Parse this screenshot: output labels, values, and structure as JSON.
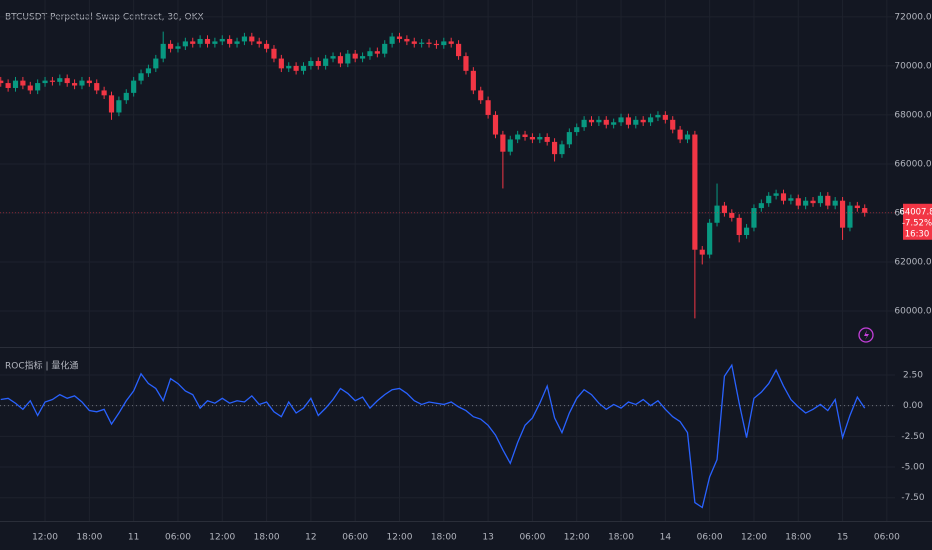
{
  "chart_data": [
    {
      "type": "candlestick",
      "title": "BTCUSDT Perpetual Swap Contract, 30, OKX",
      "up_color": "#089981",
      "down_color": "#f23645",
      "grid": true,
      "xlim": [
        5.9,
        127.1
      ],
      "ylim": [
        58530,
        72690
      ],
      "yticks": [
        {
          "value": 60000,
          "label": "60000.0"
        },
        {
          "value": 62000,
          "label": "62000.0"
        },
        {
          "value": 64000,
          "label": "64000.0"
        },
        {
          "value": 66000,
          "label": "66000.0"
        },
        {
          "value": 68000,
          "label": "68000.0"
        },
        {
          "value": 70000,
          "label": "70000.0"
        },
        {
          "value": 72000,
          "label": "72000.0"
        }
      ],
      "x": [
        6,
        7,
        8,
        9,
        10,
        11,
        12,
        13,
        14,
        15,
        16,
        17,
        18,
        19,
        20,
        21,
        22,
        23,
        24,
        25,
        26,
        27,
        28,
        29,
        30,
        31,
        32,
        33,
        34,
        35,
        36,
        37,
        38,
        39,
        40,
        41,
        42,
        43,
        44,
        45,
        46,
        47,
        48,
        49,
        50,
        51,
        52,
        53,
        54,
        55,
        56,
        57,
        58,
        59,
        60,
        61,
        62,
        63,
        64,
        65,
        66,
        67,
        68,
        69,
        70,
        71,
        72,
        73,
        74,
        75,
        76,
        77,
        78,
        79,
        80,
        81,
        82,
        83,
        84,
        85,
        86,
        87,
        88,
        89,
        90,
        91,
        92,
        93,
        94,
        95,
        96,
        97,
        98,
        99,
        100,
        101,
        102,
        103,
        104,
        105,
        106,
        107,
        108,
        109,
        110,
        111,
        112,
        113,
        114,
        115,
        116,
        117,
        118,
        119,
        120,
        121,
        122,
        123
      ],
      "open": [
        69400,
        69300,
        69100,
        69400,
        69200,
        69000,
        69300,
        69400,
        69350,
        69500,
        69300,
        69200,
        69400,
        69300,
        69000,
        68800,
        68100,
        68600,
        68900,
        69400,
        69700,
        69900,
        70300,
        70900,
        70700,
        70800,
        71000,
        70900,
        71100,
        70900,
        71000,
        71100,
        70900,
        71000,
        71200,
        71000,
        70900,
        70700,
        70300,
        69900,
        70000,
        69800,
        70000,
        70200,
        70000,
        70300,
        70400,
        70100,
        70500,
        70300,
        70400,
        70600,
        70500,
        70900,
        71200,
        71100,
        71000,
        70900,
        70950,
        70900,
        70850,
        71000,
        70900,
        70400,
        69800,
        69000,
        68600,
        68000,
        67200,
        66500,
        67000,
        67200,
        67100,
        67000,
        67100,
        66900,
        66400,
        66800,
        67300,
        67500,
        67800,
        67700,
        67800,
        67600,
        67700,
        67900,
        67600,
        67800,
        67700,
        67900,
        68000,
        67800,
        67400,
        67000,
        67200,
        62500,
        62300,
        63600,
        64300,
        64000,
        63800,
        63100,
        63400,
        64200,
        64400,
        64700,
        64800,
        64500,
        64600,
        64300,
        64500,
        64400,
        64700,
        64300,
        64500,
        63400,
        64300,
        64200
      ],
      "high": [
        69550,
        69450,
        69550,
        69550,
        69350,
        69450,
        69550,
        69550,
        69650,
        69650,
        69450,
        69550,
        69550,
        69450,
        69150,
        68950,
        68750,
        69050,
        69550,
        69850,
        70050,
        70450,
        71400,
        71050,
        70950,
        71150,
        71150,
        71250,
        71250,
        71150,
        71250,
        71250,
        71150,
        71350,
        71350,
        71150,
        71050,
        70850,
        70450,
        70150,
        70150,
        70150,
        70350,
        70350,
        70450,
        70550,
        70550,
        70650,
        70650,
        70550,
        70750,
        70750,
        71050,
        71350,
        71350,
        71250,
        71150,
        71100,
        71100,
        71050,
        71150,
        71150,
        71050,
        70550,
        69950,
        69150,
        68750,
        68150,
        67350,
        67150,
        67350,
        67350,
        67250,
        67250,
        67250,
        67050,
        66950,
        67450,
        67650,
        67950,
        67950,
        67950,
        67950,
        67850,
        68050,
        68050,
        67950,
        67950,
        68050,
        68150,
        68150,
        67950,
        67550,
        67350,
        67350,
        62650,
        63750,
        65200,
        64450,
        64150,
        63950,
        63550,
        64350,
        64550,
        64850,
        64950,
        64950,
        64750,
        64750,
        64650,
        64650,
        64850,
        64850,
        64650,
        64650,
        64450,
        64450,
        64350
      ],
      "low": [
        69150,
        68950,
        68950,
        69050,
        68850,
        68850,
        69150,
        69200,
        69200,
        69150,
        69050,
        69050,
        69150,
        68850,
        68650,
        67800,
        67950,
        68450,
        68750,
        69250,
        69550,
        69750,
        70150,
        70550,
        70550,
        70650,
        70750,
        70750,
        70750,
        70750,
        70850,
        70750,
        70750,
        70850,
        70850,
        70750,
        70550,
        70150,
        69750,
        69750,
        69650,
        69650,
        69850,
        69850,
        69850,
        70150,
        69950,
        69950,
        70150,
        70150,
        70250,
        70350,
        70350,
        70750,
        70950,
        70850,
        70750,
        70750,
        70750,
        70700,
        70700,
        70750,
        70250,
        69650,
        68850,
        68450,
        67850,
        67050,
        65000,
        66350,
        66850,
        66950,
        66850,
        66850,
        66750,
        66100,
        66250,
        66650,
        67150,
        67350,
        67550,
        67550,
        67450,
        67450,
        67550,
        67450,
        67450,
        67550,
        67550,
        67750,
        67650,
        67250,
        66850,
        66850,
        59700,
        61900,
        62150,
        63450,
        63850,
        63650,
        62800,
        62950,
        63250,
        64050,
        64250,
        64550,
        64350,
        64350,
        64150,
        64150,
        64250,
        64250,
        64150,
        64150,
        62900,
        63250,
        64050,
        63850
      ],
      "close": [
        69300,
        69100,
        69400,
        69200,
        69000,
        69300,
        69400,
        69350,
        69500,
        69300,
        69200,
        69400,
        69300,
        69000,
        68800,
        68100,
        68600,
        68900,
        69400,
        69700,
        69900,
        70300,
        70900,
        70700,
        70800,
        71000,
        70900,
        71100,
        70900,
        71000,
        71100,
        70900,
        71000,
        71200,
        71000,
        70900,
        70700,
        70300,
        69900,
        70000,
        69800,
        70000,
        70200,
        70000,
        70300,
        70400,
        70100,
        70500,
        70300,
        70400,
        70600,
        70500,
        70900,
        71200,
        71100,
        71000,
        70900,
        70950,
        70900,
        70850,
        71000,
        70900,
        70400,
        69800,
        69000,
        68600,
        68000,
        67200,
        66500,
        67000,
        67200,
        67100,
        67000,
        67100,
        66900,
        66400,
        66800,
        67300,
        67500,
        67800,
        67700,
        67800,
        67600,
        67700,
        67900,
        67600,
        67800,
        67700,
        67900,
        68000,
        67800,
        67400,
        67000,
        67200,
        62500,
        62300,
        63600,
        64300,
        64000,
        63800,
        63100,
        63400,
        64200,
        64400,
        64700,
        64800,
        64500,
        64600,
        64300,
        64500,
        64400,
        64700,
        64300,
        64500,
        63400,
        64300,
        64200,
        64007.8
      ],
      "last_change_label": "-7.52%",
      "countdown": "16:30"
    },
    {
      "type": "line",
      "title": "ROC指标 | 量化通",
      "color": "#2962ff",
      "grid": true,
      "xlim": [
        5.9,
        127.1
      ],
      "ylim": [
        -9.4,
        4.7
      ],
      "yticks": [
        {
          "value": -7.5,
          "label": "-7.50"
        },
        {
          "value": -5,
          "label": "-5.00"
        },
        {
          "value": -2.5,
          "label": "-2.50"
        },
        {
          "value": 0,
          "label": "0.00"
        },
        {
          "value": 2.5,
          "label": "2.50"
        }
      ],
      "xticks": [
        {
          "value": 12,
          "label": "12:00"
        },
        {
          "value": 18,
          "label": "18:00"
        },
        {
          "value": 24,
          "label": "11"
        },
        {
          "value": 30,
          "label": "06:00"
        },
        {
          "value": 36,
          "label": "12:00"
        },
        {
          "value": 42,
          "label": "18:00"
        },
        {
          "value": 48,
          "label": "12"
        },
        {
          "value": 54,
          "label": "06:00"
        },
        {
          "value": 60,
          "label": "12:00"
        },
        {
          "value": 66,
          "label": "18:00"
        },
        {
          "value": 72,
          "label": "13"
        },
        {
          "value": 78,
          "label": "06:00"
        },
        {
          "value": 84,
          "label": "12:00"
        },
        {
          "value": 90,
          "label": "18:00"
        },
        {
          "value": 96,
          "label": "14"
        },
        {
          "value": 102,
          "label": "06:00"
        },
        {
          "value": 108,
          "label": "12:00"
        },
        {
          "value": 114,
          "label": "18:00"
        },
        {
          "value": 120,
          "label": "15"
        },
        {
          "value": 126,
          "label": "06:00"
        }
      ],
      "x": [
        6,
        7,
        8,
        9,
        10,
        11,
        12,
        13,
        14,
        15,
        16,
        17,
        18,
        19,
        20,
        21,
        22,
        23,
        24,
        25,
        26,
        27,
        28,
        29,
        30,
        31,
        32,
        33,
        34,
        35,
        36,
        37,
        38,
        39,
        40,
        41,
        42,
        43,
        44,
        45,
        46,
        47,
        48,
        49,
        50,
        51,
        52,
        53,
        54,
        55,
        56,
        57,
        58,
        59,
        60,
        61,
        62,
        63,
        64,
        65,
        66,
        67,
        68,
        69,
        70,
        71,
        72,
        73,
        74,
        75,
        76,
        77,
        78,
        79,
        80,
        81,
        82,
        83,
        84,
        85,
        86,
        87,
        88,
        89,
        90,
        91,
        92,
        93,
        94,
        95,
        96,
        97,
        98,
        99,
        100,
        101,
        102,
        103,
        104,
        105,
        106,
        107,
        108,
        109,
        110,
        111,
        112,
        113,
        114,
        115,
        116,
        117,
        118,
        119,
        120,
        121,
        122,
        123
      ],
      "values": [
        0.5,
        0.6,
        0.2,
        -0.3,
        0.4,
        -0.8,
        0.3,
        0.5,
        0.9,
        0.6,
        0.8,
        0.3,
        -0.4,
        -0.5,
        -0.3,
        -1.5,
        -0.6,
        0.4,
        1.2,
        2.6,
        1.8,
        1.4,
        0.4,
        2.2,
        1.8,
        1.2,
        0.9,
        -0.2,
        0.4,
        0.2,
        0.6,
        0.2,
        0.4,
        0.3,
        0.8,
        0.1,
        0.3,
        -0.5,
        -0.9,
        0.3,
        -0.6,
        -0.2,
        0.6,
        -0.8,
        -0.2,
        0.5,
        1.4,
        1.0,
        0.4,
        0.7,
        -0.2,
        0.4,
        0.9,
        1.3,
        1.4,
        1.0,
        0.4,
        0.1,
        0.3,
        0.2,
        0.1,
        0.3,
        -0.1,
        -0.4,
        -0.9,
        -1.1,
        -1.6,
        -2.4,
        -3.6,
        -4.7,
        -3.0,
        -1.6,
        -1.0,
        0.2,
        1.6,
        -1.0,
        -2.2,
        -0.6,
        0.6,
        1.3,
        0.9,
        0.2,
        -0.3,
        0.1,
        -0.2,
        0.3,
        0.1,
        0.5,
        0.0,
        0.4,
        -0.3,
        -0.9,
        -1.3,
        -2.2,
        -7.9,
        -8.3,
        -5.8,
        -4.4,
        2.4,
        3.3,
        0.2,
        -2.6,
        0.6,
        1.1,
        1.8,
        2.9,
        1.6,
        0.5,
        -0.1,
        -0.6,
        -0.3,
        0.1,
        -0.4,
        0.5,
        -2.6,
        -0.8,
        0.7,
        -0.2
      ]
    }
  ]
}
